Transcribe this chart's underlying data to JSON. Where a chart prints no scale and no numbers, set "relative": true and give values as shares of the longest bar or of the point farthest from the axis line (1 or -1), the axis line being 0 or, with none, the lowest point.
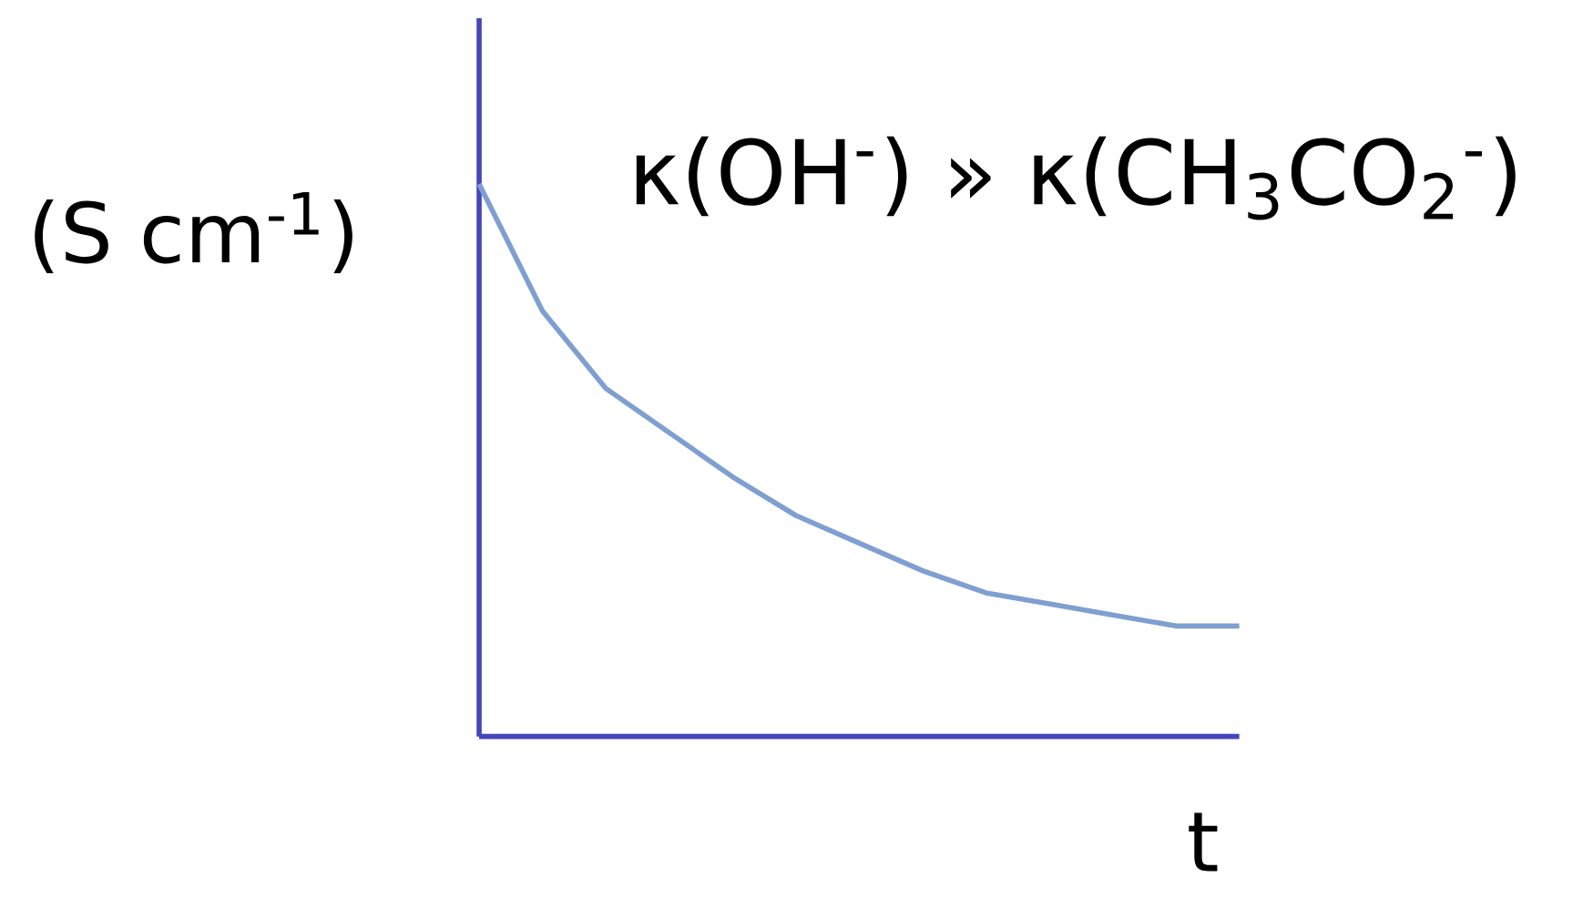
{
  "chart_data": {
    "type": "line",
    "relative": true,
    "ylabel": "(S cm$^{-1}$)",
    "xlabel": "t",
    "annotations": [
      "κ(OH$^{-}$)  »  κ(CH$_{3}$CO$_{2}$$^{-}$)"
    ],
    "categories": [
      null,
      null,
      null,
      null,
      null,
      null,
      null,
      null,
      null,
      null,
      null,
      null,
      null
    ],
    "values": [
      1,
      0.77,
      0.63,
      0.55,
      0.47,
      0.4,
      0.35,
      0.3,
      0.26,
      0.24,
      0.22,
      0.2,
      0.2
    ],
    "color": "#7f9fd0"
  }
}
